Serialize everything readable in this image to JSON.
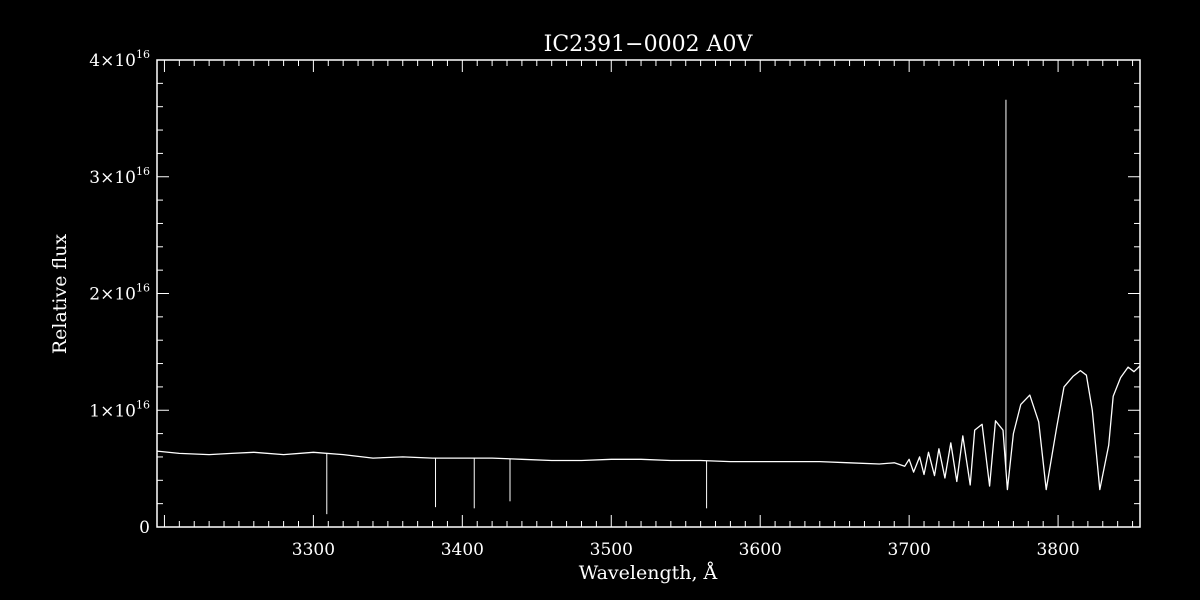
{
  "chart_data": {
    "type": "line",
    "title": "IC2391−0002  A0V",
    "xlabel": "Wavelength, Å",
    "ylabel": "Relative flux",
    "xlim": [
      3195,
      3855
    ],
    "ylim": [
      0,
      4e+16
    ],
    "x_ticks": [
      3300,
      3400,
      3500,
      3600,
      3700,
      3800
    ],
    "y_ticks": [
      {
        "value": 0,
        "mantissa": "0",
        "exponent": ""
      },
      {
        "value": 1e+16,
        "mantissa": "1×10",
        "exponent": "16"
      },
      {
        "value": 2e+16,
        "mantissa": "2×10",
        "exponent": "16"
      },
      {
        "value": 3e+16,
        "mantissa": "3×10",
        "exponent": "16"
      },
      {
        "value": 4e+16,
        "mantissa": "4×10",
        "exponent": "16"
      }
    ],
    "grid": false,
    "colors": {
      "background": "#000000",
      "foreground": "#ffffff"
    },
    "series": [
      {
        "x": [
          3195,
          3210,
          3230,
          3245,
          3260,
          3280,
          3300,
          3320,
          3340,
          3360,
          3380,
          3400,
          3420,
          3440,
          3460,
          3480,
          3500,
          3520,
          3540,
          3560,
          3580,
          3600,
          3620,
          3640,
          3660,
          3680,
          3690,
          3697,
          3700,
          3703,
          3707,
          3710,
          3713,
          3717,
          3720,
          3724,
          3728,
          3732,
          3736,
          3741,
          3744,
          3749,
          3754,
          3758,
          3763,
          3766,
          3770,
          3775,
          3781,
          3787,
          3792,
          3799,
          3804,
          3810,
          3815,
          3819,
          3823,
          3828,
          3834,
          3837,
          3842,
          3847,
          3851,
          3855
        ],
        "y": [
          6500000000000000.0,
          6300000000000000.0,
          6200000000000000.0,
          6300000000000000.0,
          6400000000000000.0,
          6200000000000000.0,
          6400000000000000.0,
          6200000000000000.0,
          5900000000000000.0,
          6000000000000000.0,
          5900000000000000.0,
          5900000000000000.0,
          5900000000000000.0,
          5800000000000000.0,
          5700000000000000.0,
          5700000000000000.0,
          5800000000000000.0,
          5800000000000000.0,
          5700000000000000.0,
          5700000000000000.0,
          5600000000000000.0,
          5600000000000000.0,
          5600000000000000.0,
          5600000000000000.0,
          5500000000000000.0,
          5400000000000000.0,
          5500000000000000.0,
          5200000000000000.0,
          5800000000000000.0,
          4700000000000000.0,
          6000000000000000.0,
          4500000000000000.0,
          6400000000000000.0,
          4400000000000000.0,
          6700000000000000.0,
          4200000000000000.0,
          7200000000000000.0,
          3900000000000000.0,
          7800000000000000.0,
          3600000000000000.0,
          8300000000000000.0,
          8800000000000000.0,
          3500000000000000.0,
          9100000000000000.0,
          8300000000000000.0,
          3200000000000000.0,
          8000000000000000.0,
          1.05e+16,
          1.13e+16,
          9000000000000000.0,
          3200000000000000.0,
          8500000000000000.0,
          1.2e+16,
          1.29e+16,
          1.34e+16,
          1.3e+16,
          1e+16,
          3200000000000000.0,
          7000000000000000.0,
          1.12e+16,
          1.28e+16,
          1.37e+16,
          1.33e+16,
          1.38e+16
        ]
      }
    ],
    "spikes": [
      {
        "x": 3309,
        "y": 1100000000000000.0
      },
      {
        "x": 3382,
        "y": 1700000000000000.0
      },
      {
        "x": 3408,
        "y": 1600000000000000.0
      },
      {
        "x": 3432,
        "y": 2200000000000000.0
      },
      {
        "x": 3564,
        "y": 1600000000000000.0
      },
      {
        "x": 3765,
        "y": 3.66e+16
      }
    ]
  }
}
